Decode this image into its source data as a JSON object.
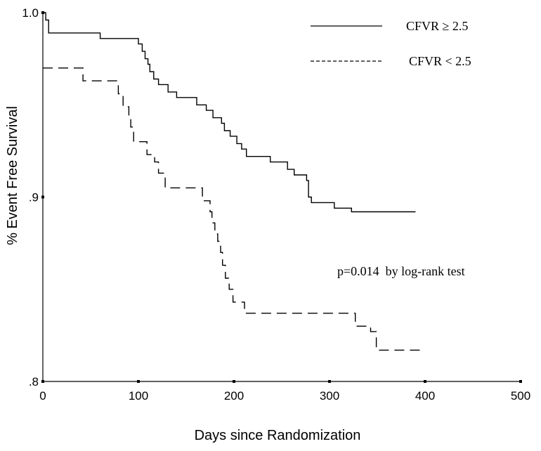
{
  "chart_data": {
    "type": "line",
    "subtype": "kaplan-meier step",
    "xlabel": "Days since Randomization",
    "ylabel": "% Event Free Survival",
    "xlim": [
      0,
      500
    ],
    "ylim": [
      0.8,
      1.0
    ],
    "x_ticks": [
      0,
      100,
      200,
      300,
      400,
      500
    ],
    "x_tick_labels": [
      "0",
      "100",
      "200",
      "300",
      "400",
      "500"
    ],
    "y_ticks": [
      0.8,
      0.9,
      1.0
    ],
    "y_tick_labels": [
      ".8",
      ".9",
      "1.0"
    ],
    "grid": false,
    "legend_position": "top-right",
    "annotation": "p=0.014  by log-rank test",
    "series": [
      {
        "name": "CFVR ≥ 2.5",
        "line_style": "solid",
        "color": "#000000",
        "points": [
          [
            0,
            1.0
          ],
          [
            3,
            0.996
          ],
          [
            6,
            0.989
          ],
          [
            60,
            0.989
          ],
          [
            60,
            0.986
          ],
          [
            95,
            0.986
          ],
          [
            100,
            0.983
          ],
          [
            104,
            0.979
          ],
          [
            107,
            0.975
          ],
          [
            110,
            0.972
          ],
          [
            112,
            0.968
          ],
          [
            116,
            0.964
          ],
          [
            121,
            0.961
          ],
          [
            131,
            0.957
          ],
          [
            140,
            0.954
          ],
          [
            161,
            0.95
          ],
          [
            171,
            0.947
          ],
          [
            178,
            0.943
          ],
          [
            187,
            0.94
          ],
          [
            190,
            0.936
          ],
          [
            196,
            0.933
          ],
          [
            203,
            0.929
          ],
          [
            208,
            0.926
          ],
          [
            213,
            0.922
          ],
          [
            238,
            0.919
          ],
          [
            256,
            0.915
          ],
          [
            263,
            0.912
          ],
          [
            276,
            0.909
          ],
          [
            278,
            0.9
          ],
          [
            281,
            0.897
          ],
          [
            302,
            0.897
          ],
          [
            305,
            0.894
          ],
          [
            320,
            0.894
          ],
          [
            323,
            0.892
          ],
          [
            390,
            0.892
          ]
        ]
      },
      {
        "name": "CFVR < 2.5",
        "line_style": "dashed",
        "color": "#000000",
        "points": [
          [
            0,
            0.97
          ],
          [
            42,
            0.97
          ],
          [
            42,
            0.963
          ],
          [
            76,
            0.963
          ],
          [
            79,
            0.956
          ],
          [
            84,
            0.949
          ],
          [
            90,
            0.942
          ],
          [
            92,
            0.938
          ],
          [
            95,
            0.93
          ],
          [
            109,
            0.93
          ],
          [
            109,
            0.923
          ],
          [
            117,
            0.919
          ],
          [
            121,
            0.913
          ],
          [
            128,
            0.905
          ],
          [
            163,
            0.905
          ],
          [
            167,
            0.898
          ],
          [
            175,
            0.892
          ],
          [
            177,
            0.886
          ],
          [
            180,
            0.88
          ],
          [
            183,
            0.876
          ],
          [
            186,
            0.87
          ],
          [
            188,
            0.863
          ],
          [
            191,
            0.856
          ],
          [
            195,
            0.85
          ],
          [
            199,
            0.843
          ],
          [
            211,
            0.837
          ],
          [
            325,
            0.837
          ],
          [
            327,
            0.83
          ],
          [
            335,
            0.83
          ],
          [
            343,
            0.827
          ],
          [
            349,
            0.817
          ],
          [
            395,
            0.817
          ]
        ]
      }
    ]
  }
}
